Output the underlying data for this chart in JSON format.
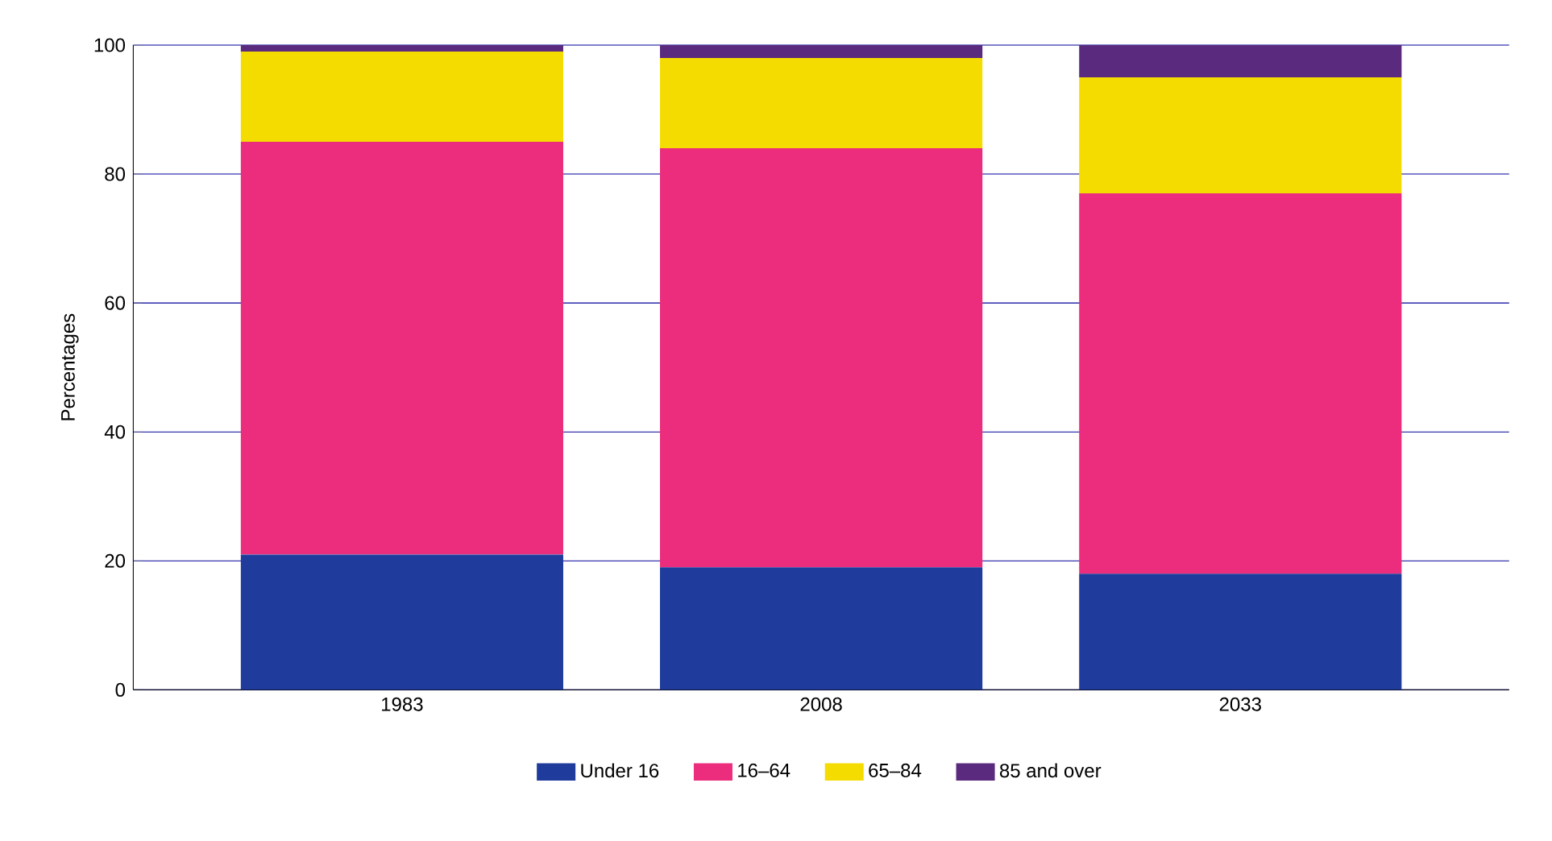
{
  "chart_data": {
    "type": "bar",
    "stacked": true,
    "ylabel": "Percentages",
    "categories": [
      "1983",
      "2008",
      "2033"
    ],
    "series": [
      {
        "name": "Under 16",
        "color": "#1f3c9c",
        "values": [
          21,
          19,
          18
        ]
      },
      {
        "name": "16–64",
        "color": "#ec2c7c",
        "values": [
          64,
          65,
          59
        ]
      },
      {
        "name": "65–84",
        "color": "#f4dc00",
        "values": [
          14,
          14,
          18
        ]
      },
      {
        "name": "85 and over",
        "color": "#5a2a7e",
        "values": [
          1,
          2,
          5
        ]
      }
    ],
    "ylim": [
      0,
      100
    ],
    "yticks": [
      0,
      20,
      40,
      60,
      80,
      100
    ],
    "grid": "y",
    "legend": "bottom"
  }
}
